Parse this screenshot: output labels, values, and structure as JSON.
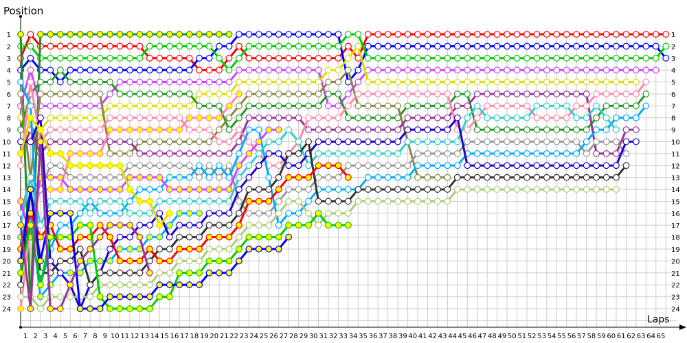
{
  "chart_data": {
    "type": "line",
    "ylabel": "Position",
    "xlabel": "Laps",
    "x_ticks": [
      1,
      2,
      3,
      4,
      5,
      6,
      7,
      8,
      9,
      10,
      11,
      12,
      13,
      14,
      15,
      16,
      17,
      18,
      19,
      20,
      21,
      22,
      23,
      24,
      25,
      26,
      27,
      28,
      29,
      30,
      31,
      32,
      33,
      34,
      35,
      36,
      37,
      38,
      39,
      40,
      41,
      42,
      43,
      44,
      45,
      46,
      47,
      48,
      49,
      50,
      51,
      52,
      53,
      54,
      55,
      56,
      57,
      58,
      59,
      60,
      61,
      62,
      63,
      64,
      65
    ],
    "y_ticks": [
      1,
      2,
      3,
      4,
      5,
      6,
      7,
      8,
      9,
      10,
      11,
      12,
      13,
      14,
      15,
      16,
      17,
      18,
      19,
      20,
      21,
      22,
      23,
      24
    ],
    "xlim": [
      0,
      65
    ],
    "ylim": [
      1,
      24
    ],
    "y_inverted": true,
    "grid": true,
    "x_start_lap": 0,
    "series": [
      {
        "color": "#ff0000",
        "marker_fill": "#ffffff",
        "positions": [
          3,
          1,
          2,
          2,
          2,
          2,
          2,
          2,
          2,
          2,
          2,
          2,
          2,
          3,
          3,
          3,
          3,
          3,
          4,
          4,
          4,
          3,
          2,
          3,
          3,
          3,
          3,
          3,
          3,
          3,
          3,
          3,
          3,
          2,
          3,
          1,
          1,
          1,
          1,
          1,
          1,
          1,
          1,
          1,
          1,
          1,
          1,
          1,
          1,
          1,
          1,
          1,
          1,
          1,
          1,
          1,
          1,
          1,
          1,
          1,
          1,
          1,
          1,
          1,
          1,
          1
        ]
      },
      {
        "color": "#0000ff",
        "marker_fill": "#ffffff",
        "positions": [
          4,
          3,
          4,
          4,
          5,
          4,
          4,
          4,
          4,
          4,
          4,
          4,
          4,
          4,
          4,
          4,
          4,
          4,
          3,
          3,
          2,
          2,
          1,
          1,
          1,
          1,
          1,
          1,
          1,
          1,
          1,
          1,
          1,
          5,
          4,
          2,
          2,
          2,
          2,
          2,
          2,
          2,
          2,
          2,
          2,
          2,
          2,
          2,
          2,
          2,
          2,
          2,
          2,
          2,
          2,
          2,
          2,
          2,
          2,
          2,
          2,
          2,
          2,
          2,
          2,
          3
        ]
      },
      {
        "color": "#00cc00",
        "marker_fill": "#ffffff",
        "positions": [
          2,
          2,
          3,
          3,
          3,
          3,
          3,
          3,
          3,
          3,
          3,
          3,
          3,
          2,
          2,
          2,
          2,
          2,
          2,
          2,
          3,
          4,
          3,
          2,
          2,
          2,
          2,
          2,
          2,
          2,
          2,
          2,
          2,
          1,
          1,
          3,
          3,
          3,
          3,
          3,
          3,
          3,
          3,
          3,
          3,
          3,
          3,
          3,
          3,
          3,
          3,
          3,
          3,
          3,
          3,
          3,
          3,
          3,
          3,
          3,
          3,
          3,
          3,
          3,
          3,
          2
        ]
      },
      {
        "color": "#228b22",
        "marker_fill": "#ffff00",
        "positions": [
          1,
          24,
          1,
          1,
          1,
          1,
          1,
          1,
          1,
          1,
          1,
          1,
          1,
          1,
          1,
          1,
          1,
          1,
          1,
          1,
          1,
          1
        ]
      },
      {
        "color": "#cc44ff",
        "marker_fill": "#ffffff",
        "positions": [
          7,
          4,
          7,
          7,
          7,
          7,
          7,
          7,
          7,
          6,
          5,
          5,
          5,
          5,
          5,
          5,
          5,
          5,
          5,
          5,
          5,
          5,
          4,
          4,
          4,
          4,
          4,
          4,
          4,
          4,
          4,
          7,
          7,
          6,
          5,
          4,
          4,
          4,
          4,
          4,
          4,
          4,
          4,
          4,
          4,
          4,
          4,
          4,
          4,
          4,
          4,
          4,
          4,
          4,
          4,
          4,
          4,
          4,
          4,
          4,
          4,
          4,
          4,
          4,
          4
        ]
      },
      {
        "color": "#dddd00",
        "marker_fill": "#ffffff",
        "positions": [
          8,
          8,
          9,
          8,
          8,
          8,
          8,
          8,
          8,
          7,
          7,
          7,
          7,
          7,
          7,
          7,
          7,
          7,
          6,
          6,
          6,
          6,
          5,
          5,
          5,
          5,
          5,
          5,
          5,
          5,
          5,
          4,
          4,
          3,
          2,
          5,
          5,
          5,
          5,
          5,
          5,
          5,
          5,
          5,
          5,
          5,
          5,
          5,
          5,
          5,
          5,
          5,
          5,
          5,
          5,
          5,
          5,
          5,
          5,
          5,
          5,
          5,
          5
        ]
      },
      {
        "color": "#229922",
        "marker_fill": "#ffffff",
        "positions": [
          9,
          6,
          5,
          5,
          4,
          5,
          5,
          5,
          5,
          5,
          6,
          6,
          6,
          6,
          6,
          6,
          6,
          6,
          7,
          7,
          7,
          9,
          8,
          7,
          7,
          7,
          7,
          7,
          7,
          7,
          7,
          6,
          6,
          8,
          8,
          8,
          8,
          8,
          8,
          7,
          7,
          7,
          7,
          7,
          6,
          6,
          9,
          9,
          9,
          9,
          9,
          9,
          9,
          9,
          9,
          9,
          9,
          9,
          8,
          7,
          7,
          7,
          7,
          6
        ]
      },
      {
        "color": "#888844",
        "marker_fill": "#ffffff",
        "positions": [
          6,
          13,
          6,
          6,
          6,
          6,
          6,
          6,
          6,
          11,
          11,
          11,
          10,
          10,
          10,
          10,
          10,
          10,
          10,
          10,
          9,
          8,
          7,
          6,
          6,
          6,
          6,
          6,
          6,
          6,
          6,
          5,
          5,
          4,
          7,
          7,
          7,
          7,
          7,
          10,
          13,
          13,
          13,
          13
        ]
      },
      {
        "color": "#993399",
        "marker_fill": "#ffffff",
        "positions": [
          11,
          9,
          11,
          10,
          10,
          10,
          10,
          10,
          10,
          10,
          10,
          10,
          11,
          11,
          11,
          11,
          11,
          11,
          11,
          11,
          11,
          11,
          10,
          8,
          8,
          8,
          8,
          8,
          8,
          9,
          9,
          9,
          9,
          9,
          9,
          9,
          9,
          9,
          9,
          8,
          8,
          8,
          8,
          8,
          7,
          7,
          6,
          6,
          6,
          6,
          6,
          6,
          6,
          6,
          6,
          6,
          6,
          6,
          11,
          11,
          11,
          9,
          9
        ]
      },
      {
        "color": "#ff88aa",
        "marker_fill": "#ffffff",
        "positions": [
          12,
          5,
          10,
          9,
          9,
          9,
          9,
          9,
          9,
          8,
          8,
          8,
          8,
          8,
          8,
          8,
          8,
          9,
          9,
          9,
          10,
          10,
          9,
          10,
          11,
          12,
          12,
          11,
          10,
          8,
          8,
          8,
          8,
          7,
          6,
          6,
          6,
          6,
          6,
          6,
          6,
          6,
          6,
          6,
          9,
          9,
          8,
          7,
          7,
          7,
          7,
          7,
          8,
          8,
          8,
          8,
          7,
          7,
          6,
          6,
          6,
          6,
          6,
          5
        ]
      },
      {
        "color": "#ff88aa",
        "marker_fill": "#ffff00",
        "positions": [
          24,
          17,
          14,
          14,
          14,
          11,
          11,
          11,
          11,
          9,
          9,
          9,
          9,
          9,
          9,
          9,
          9,
          8,
          8,
          8,
          8,
          7,
          6
        ]
      },
      {
        "color": "#999999",
        "marker_fill": "#ffffff",
        "positions": [
          16,
          13,
          14,
          12,
          12,
          13,
          13,
          13,
          13,
          13,
          13,
          12,
          12,
          12,
          12,
          12,
          12,
          12,
          13,
          12,
          13,
          12,
          15,
          16,
          16,
          16,
          15,
          14,
          14,
          14,
          13,
          13,
          13,
          12,
          12,
          12,
          12,
          12,
          12,
          12,
          11,
          11,
          11,
          11,
          11,
          10,
          10,
          10,
          10,
          10,
          10,
          10,
          10,
          10,
          10,
          10,
          10,
          11,
          10,
          10,
          10,
          11
        ]
      },
      {
        "color": "#00aaff",
        "marker_fill": "#ffffff",
        "positions": [
          5,
          7,
          22,
          19,
          17,
          17,
          16,
          15,
          16,
          16,
          16,
          15,
          14,
          14,
          14,
          13,
          13,
          13,
          12,
          13,
          12,
          13,
          11,
          9,
          9,
          13,
          17,
          16,
          16,
          15,
          14,
          14,
          14,
          14,
          14,
          13,
          13,
          13,
          13,
          13,
          12,
          12,
          12,
          12,
          12,
          11,
          11,
          11,
          11,
          11,
          11,
          11,
          11,
          11,
          11,
          11,
          11,
          10,
          9,
          9,
          8,
          8,
          8,
          7
        ]
      },
      {
        "color": "#00aaff",
        "marker_fill": "#ffff00",
        "positions": [
          18,
          16,
          23,
          22,
          21,
          21,
          21,
          20,
          20,
          20,
          19,
          19,
          19,
          18,
          18,
          17,
          16,
          16,
          16
        ]
      },
      {
        "color": "#33cccc",
        "marker_fill": "#ffffff",
        "positions": [
          17,
          13,
          17,
          15,
          15,
          15,
          15,
          16,
          15,
          15,
          15,
          16,
          16,
          16,
          15,
          15,
          15,
          15,
          15,
          15,
          15,
          15,
          13,
          12,
          11,
          10,
          10,
          9,
          10,
          12,
          11,
          11,
          11,
          11,
          11,
          11,
          11,
          11,
          11,
          10,
          10,
          10,
          10,
          10,
          10,
          8,
          7,
          8,
          8,
          8,
          8,
          8,
          7,
          7,
          7,
          7,
          8,
          8,
          7,
          8,
          9
        ]
      },
      {
        "color": "#cc44ff",
        "marker_fill": "#ffff00",
        "positions": [
          15,
          18,
          13,
          13,
          13,
          14,
          14,
          14,
          14,
          14,
          14,
          13,
          13,
          13,
          13,
          14,
          14,
          14,
          14,
          14,
          14,
          14,
          12,
          11,
          10,
          9,
          9
        ]
      },
      {
        "color": "#2200cc",
        "marker_fill": "#ffffff",
        "positions": [
          10,
          10,
          8,
          20,
          21,
          22,
          24,
          22,
          21,
          19,
          18,
          18,
          17,
          17,
          16,
          18,
          17,
          17,
          17,
          16,
          16,
          16,
          14,
          13,
          12,
          11,
          11,
          12,
          12,
          11,
          10,
          10,
          10,
          10,
          10,
          10,
          10,
          10,
          10,
          9,
          9,
          9,
          9,
          9,
          8,
          12,
          12,
          12,
          12,
          12,
          12,
          12,
          12,
          12,
          12,
          12,
          12,
          12,
          12,
          12,
          12,
          10,
          10
        ]
      },
      {
        "color": "#333333",
        "marker_fill": "#ffffff",
        "positions": [
          22,
          14,
          21,
          21,
          20,
          20,
          19,
          22,
          21,
          21,
          21,
          21,
          21,
          20,
          19,
          19,
          18,
          18,
          18,
          17,
          17,
          17,
          16,
          14,
          14,
          14,
          13,
          11,
          11,
          10,
          15,
          15,
          15,
          15,
          14,
          14,
          14,
          14,
          14,
          14,
          14,
          14,
          14,
          14,
          13,
          13,
          13,
          13,
          13,
          13,
          13,
          13,
          13,
          13,
          13,
          13,
          13,
          13,
          13,
          13,
          13,
          12
        ]
      },
      {
        "color": "#ff0000",
        "marker_fill": "#ffff00",
        "positions": [
          19,
          16,
          18,
          17,
          19,
          19,
          18,
          18,
          17,
          18,
          20,
          20,
          20,
          19,
          20,
          20,
          19,
          19,
          19,
          18,
          18,
          18,
          17,
          15,
          15,
          15,
          14,
          13,
          13,
          13,
          12,
          12,
          12,
          13
        ]
      },
      {
        "color": "#aacc77",
        "marker_fill": "#ffffff",
        "positions": [
          23,
          23,
          24,
          23,
          23,
          23,
          23,
          23,
          22,
          22,
          22,
          22,
          22,
          22,
          21,
          21,
          20,
          20,
          20,
          19,
          19,
          19,
          18,
          17,
          17,
          17,
          16,
          15,
          15,
          16,
          17,
          16,
          16,
          16,
          15,
          15,
          15,
          15,
          15,
          15,
          15,
          15,
          15,
          15,
          14,
          14,
          14,
          14,
          14,
          14,
          14,
          14,
          14,
          14,
          14,
          14,
          14,
          14,
          14,
          14,
          14
        ]
      },
      {
        "color": "#00cc00",
        "marker_fill": "#ffff00",
        "positions": [
          21,
          17,
          22,
          18,
          18,
          18,
          17,
          17,
          23,
          24,
          24,
          24,
          24,
          24,
          23,
          23,
          21,
          21,
          21,
          20,
          20,
          20,
          19,
          18,
          18,
          18,
          18,
          17,
          17,
          17,
          16,
          17,
          17,
          17
        ]
      },
      {
        "color": "#0000ff",
        "marker_fill": "#ffff00",
        "positions": [
          20,
          14,
          20,
          16,
          16,
          16,
          24,
          24,
          24,
          23,
          23,
          23,
          23,
          23,
          22,
          22,
          22,
          22,
          22,
          21,
          21,
          21,
          20,
          19,
          19,
          19,
          19,
          18
        ]
      },
      {
        "color": "#993399",
        "marker_fill": "#ffff00",
        "positions": [
          17,
          24,
          10,
          24,
          24,
          22,
          20,
          19,
          18,
          17,
          17,
          17,
          18,
          21
        ]
      },
      {
        "color": "#dddd00",
        "marker_fill": "#ffff00",
        "positions": [
          11,
          8,
          9,
          11,
          11,
          12,
          12,
          12,
          12,
          12,
          12,
          14,
          15,
          15,
          17,
          16
        ]
      }
    ]
  }
}
